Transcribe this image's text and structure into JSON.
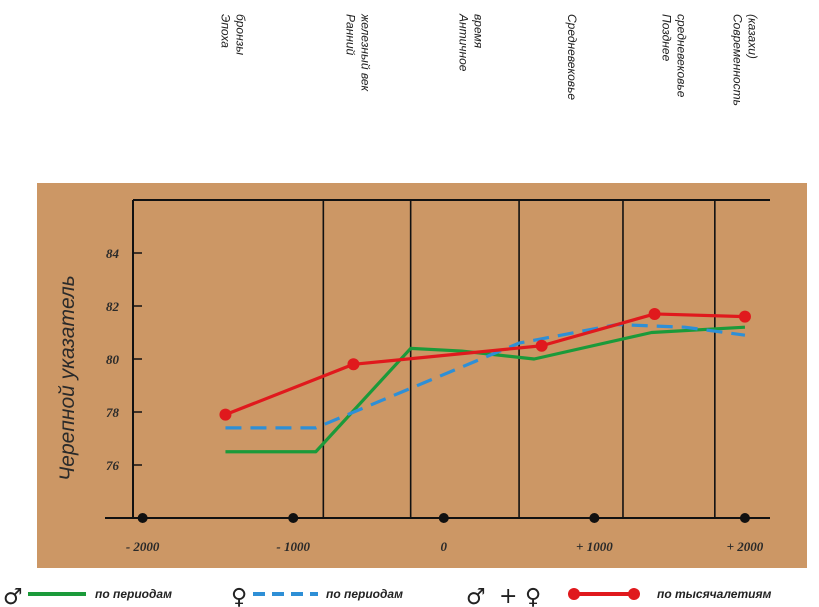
{
  "chart_data": {
    "type": "line",
    "ylabel": "Черепной указатель",
    "xlim": [
      -2250,
      2100
    ],
    "ylim": [
      74,
      86
    ],
    "ytick_values": [
      76,
      78,
      80,
      82,
      84
    ],
    "ytick_labels": [
      "76",
      "78",
      "80",
      "82",
      "84"
    ],
    "xtick_values": [
      -2000,
      -1000,
      0,
      1000,
      2000
    ],
    "xtick_labels": [
      "- 2000",
      "- 1000",
      "0",
      "+ 1000",
      "+ 2000"
    ],
    "period_boundaries": [
      -800,
      -220,
      500,
      1190,
      1800
    ],
    "periods": [
      {
        "lines": [
          "Эпоха",
          "бронзы"
        ],
        "x": -1450
      },
      {
        "lines": [
          "Ранний",
          "железный век"
        ],
        "x": -620
      },
      {
        "lines": [
          "Античное",
          "время"
        ],
        "x": 130
      },
      {
        "lines": [
          "Средневековье"
        ],
        "x": 850
      },
      {
        "lines": [
          "Позднее",
          "средневековье"
        ],
        "x": 1480
      },
      {
        "lines": [
          "Современность",
          "(казахи)"
        ],
        "x": 1950
      }
    ],
    "series": [
      {
        "symbol": "♂",
        "name": "по периодам",
        "color": "#1b9a3a",
        "style": "solid",
        "markers": false,
        "x": [
          -1450,
          -850,
          -220,
          120,
          600,
          1380,
          2000
        ],
        "y": [
          76.5,
          76.5,
          80.4,
          80.3,
          80.0,
          81.0,
          81.2
        ]
      },
      {
        "symbol": "♀",
        "name": "по периодам",
        "color": "#2e8fd6",
        "style": "dashed",
        "markers": false,
        "x": [
          -1450,
          -850,
          500,
          1150,
          1600,
          2000
        ],
        "y": [
          77.4,
          77.4,
          80.6,
          81.3,
          81.2,
          80.9
        ]
      },
      {
        "symbol": "♂ + ♀",
        "name": "по тысячалетиям",
        "color": "#e0191d",
        "style": "solid",
        "markers": true,
        "x": [
          -1450,
          -600,
          650,
          1400,
          2000
        ],
        "y": [
          77.9,
          79.8,
          80.5,
          81.7,
          81.6
        ]
      }
    ]
  },
  "legend": {
    "male_symbol": "♂",
    "female_symbol": "♀",
    "plus": "+",
    "label_periods_male": "по периодам",
    "label_periods_female": "по периодам",
    "label_millennia": "по тысячалетиям"
  },
  "colors": {
    "plot_background": "#cc9765",
    "axis": "#111111"
  }
}
